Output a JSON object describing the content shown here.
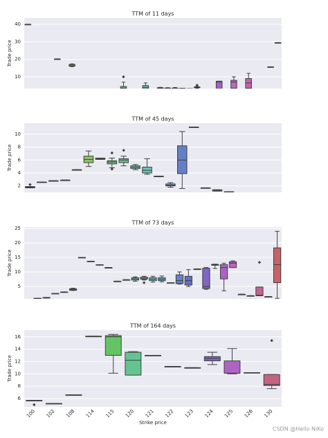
{
  "watermark": "CSDN @Hello NiKo",
  "chart_data": [
    {
      "type": "box",
      "title": "TTM of 11 days",
      "ylabel": "Trade price",
      "ylim": [
        3.3,
        43.6
      ],
      "yticks": [
        10,
        20,
        30,
        40
      ],
      "grid": true,
      "palette": {
        "hue_start": 10,
        "saturation": 45,
        "lightness": 58
      },
      "categories": [
        null,
        null,
        null,
        null,
        null,
        null,
        null,
        null,
        null,
        null,
        null,
        null,
        null,
        null,
        null,
        null,
        null,
        null,
        null,
        null,
        null,
        null,
        null,
        null,
        null,
        null,
        null,
        null,
        null,
        null,
        null,
        null,
        null,
        null,
        null
      ],
      "boxes": [
        [
          40,
          40,
          40,
          40,
          40
        ],
        null,
        null,
        null,
        [
          20.2,
          20.2,
          20.2,
          20.2,
          20.2
        ],
        null,
        [
          15.8,
          16.1,
          16.6,
          17.1,
          17.4
        ],
        null,
        null,
        null,
        null,
        null,
        null,
        [
          3,
          3.2,
          3.6,
          4.5,
          7
        ],
        null,
        null,
        [
          3,
          3.3,
          4,
          5,
          6.5
        ],
        null,
        [
          3,
          3.3,
          3.5,
          3.8,
          4
        ],
        [
          3.2,
          3.3,
          3.5,
          3.6,
          3.8
        ],
        [
          3.3,
          3.4,
          3.5,
          3.6,
          3.9
        ],
        [
          3.3,
          3.3,
          3.4,
          3.4,
          3.5
        ],
        [
          3.2,
          3.2,
          3.2,
          3.2,
          3.2
        ],
        [
          3.5,
          3.8,
          4,
          4.2,
          4.5
        ],
        null,
        null,
        [
          3,
          3.2,
          7,
          7.5,
          7.5
        ],
        null,
        [
          3,
          3.5,
          7,
          8,
          10
        ],
        null,
        [
          2.8,
          3.5,
          6.5,
          9,
          12
        ],
        null,
        null,
        [
          15.7,
          15.7,
          15.7,
          15.7,
          15.7
        ],
        [
          29.5,
          29.5,
          29.5,
          29.5,
          29.5
        ]
      ],
      "outliers": [
        [],
        [],
        [],
        [],
        [],
        [],
        [],
        [],
        [],
        [],
        [],
        [],
        [],
        [
          10
        ],
        [],
        [],
        [],
        [],
        [],
        [],
        [],
        [],
        [],
        [
          5.2
        ],
        [],
        [],
        [],
        [],
        [],
        [],
        [],
        [],
        [],
        [],
        []
      ]
    },
    {
      "type": "box",
      "title": "TTM of 45 days",
      "ylabel": "Trade price",
      "ylim": [
        1.0,
        11.7
      ],
      "yticks": [
        2,
        4,
        6,
        8,
        10
      ],
      "grid": true,
      "palette": {
        "hue_start": 10,
        "saturation": 45,
        "lightness": 58
      },
      "categories": [
        null,
        null,
        null,
        null,
        null,
        null,
        null,
        null,
        null,
        null,
        null,
        null,
        null,
        null,
        null,
        null,
        null,
        null,
        null,
        null,
        null,
        null
      ],
      "boxes": [
        [
          1.7,
          1.7,
          1.8,
          1.9,
          1.9
        ],
        [
          2.6,
          2.6,
          2.6,
          2.6,
          2.6
        ],
        [
          2.8,
          2.8,
          2.8,
          2.8,
          2.8
        ],
        [
          2.9,
          2.9,
          2.9,
          2.9,
          2.9
        ],
        [
          4.5,
          4.5,
          4.5,
          4.5,
          4.5
        ],
        [
          5,
          5.6,
          6.1,
          6.6,
          7.4
        ],
        [
          6.1,
          6.1,
          6.2,
          6.3,
          6.3
        ],
        [
          4.8,
          5.4,
          5.7,
          5.9,
          6.3
        ],
        [
          5.1,
          5.6,
          6,
          6.2,
          6.6
        ],
        [
          4.5,
          4.7,
          4.9,
          5.1,
          5.3
        ],
        [
          3.8,
          4,
          4.4,
          4.9,
          6.2
        ],
        [
          3.5,
          3.5,
          3.5,
          3.5,
          3.5
        ],
        [
          1.8,
          2,
          2.1,
          2.3,
          2.5
        ],
        [
          1.6,
          3.9,
          6,
          8.2,
          10.4
        ],
        [
          11.1,
          11.1,
          11.1,
          11.1,
          11.1
        ],
        [
          1.7,
          1.7,
          1.7,
          1.7,
          1.7
        ],
        [
          1.2,
          1.2,
          1.3,
          1.4,
          1.4
        ],
        [
          1.1,
          1.1,
          1.1,
          1.1,
          1.1
        ],
        null,
        null,
        null,
        null
      ],
      "outliers": [
        [
          2.2
        ],
        [],
        [],
        [],
        [],
        [],
        [],
        [
          7.1,
          4.6
        ],
        [
          7.5
        ],
        [],
        [],
        [],
        [],
        [],
        [],
        [],
        [],
        [],
        [],
        [],
        [],
        []
      ]
    },
    {
      "type": "box",
      "title": "TTM of 73 days",
      "ylabel": "Trade price",
      "ylim": [
        0.7,
        25.5
      ],
      "yticks": [
        5,
        10,
        15,
        20,
        25
      ],
      "grid": true,
      "palette": {
        "hue_start": 10,
        "saturation": 45,
        "lightness": 58
      },
      "categories": [
        null,
        null,
        null,
        null,
        null,
        null,
        null,
        null,
        null,
        null,
        null,
        null,
        null,
        null,
        null,
        null,
        null,
        null,
        null,
        null,
        null,
        null,
        null,
        null,
        null,
        null,
        null,
        null,
        null
      ],
      "boxes": [
        null,
        [
          0.9,
          0.9,
          0.9,
          0.9,
          0.9
        ],
        [
          1,
          1,
          1.1,
          1.2,
          1.2
        ],
        [
          2.6,
          2.6,
          2.6,
          2.6,
          2.6
        ],
        [
          3.1,
          3.1,
          3.1,
          3.1,
          3.1
        ],
        [
          3.6,
          3.7,
          3.9,
          4.2,
          4.4
        ],
        [
          15,
          15,
          15,
          15,
          15
        ],
        [
          13.7,
          13.7,
          13.7,
          13.7,
          13.7
        ],
        [
          12.5,
          12.5,
          12.5,
          12.5,
          12.5
        ],
        [
          11.5,
          11.5,
          11.5,
          11.5,
          11.5
        ],
        [
          6.8,
          6.8,
          6.8,
          6.8,
          6.8
        ],
        [
          7.3,
          7.3,
          7.3,
          7.3,
          7.3
        ],
        [
          6.8,
          7.2,
          7.6,
          8,
          8.3
        ],
        [
          7.2,
          7.5,
          7.8,
          8.2,
          8.5
        ],
        [
          6.5,
          7,
          7.5,
          8,
          8.5
        ],
        [
          6.6,
          7,
          7.5,
          8,
          8.6
        ],
        [
          6.3,
          6.3,
          6.3,
          6.3,
          6.3
        ],
        [
          5.8,
          6,
          7,
          9,
          10
        ],
        [
          5,
          5.5,
          7,
          8.5,
          10.8
        ],
        [
          11,
          11,
          11,
          11,
          11
        ],
        [
          4,
          4.3,
          5,
          11.3,
          11.5
        ],
        [
          11.2,
          12.3,
          12.5,
          12.6,
          12.7
        ],
        [
          3.5,
          7.6,
          11.5,
          12.5,
          13
        ],
        [
          11.5,
          11.5,
          13,
          13.5,
          13.8
        ],
        [
          2.3,
          2.3,
          2.3,
          2.3,
          2.3
        ],
        [
          1.8,
          1.8,
          1.8,
          1.8,
          1.8
        ],
        [
          1.8,
          1.8,
          2,
          4.8,
          4.8
        ],
        [
          1.5,
          1.5,
          1.5,
          1.5,
          1.5
        ],
        [
          0.9,
          6.3,
          12.5,
          18.3,
          24
        ]
      ],
      "outliers": [
        [],
        [],
        [],
        [],
        [],
        [],
        [],
        [],
        [],
        [],
        [],
        [],
        [],
        [
          6.3
        ],
        [],
        [],
        [],
        [],
        [],
        [],
        [],
        [],
        [],
        [],
        [],
        [],
        [
          13.3
        ],
        [],
        []
      ]
    },
    {
      "type": "box",
      "title": "TTM of 164 days",
      "ylabel": "Trade price",
      "xlabel": "Strike price",
      "ylim": [
        4.65,
        17.1
      ],
      "yticks": [
        6,
        8,
        10,
        12,
        14,
        16
      ],
      "grid": true,
      "palette": {
        "hue_start": 10,
        "saturation": 45,
        "lightness": 58
      },
      "categories": [
        "100",
        "102",
        "108",
        "114",
        "115",
        "120",
        "121",
        "122",
        "123",
        "124",
        "125",
        "126",
        "130"
      ],
      "boxes": [
        [
          5.7,
          5.7,
          5.7,
          5.7,
          5.7
        ],
        [
          5.2,
          5.2,
          5.2,
          5.2,
          5.2
        ],
        [
          6.6,
          6.6,
          6.6,
          6.6,
          6.6
        ],
        [
          16.1,
          16.1,
          16.1,
          16.1,
          16.1
        ],
        [
          10.1,
          13,
          16,
          16.2,
          16.4
        ],
        [
          9.8,
          9.8,
          12.2,
          13.5,
          13.6
        ],
        [
          13,
          13,
          13,
          13,
          13
        ],
        [
          11.2,
          11.2,
          11.2,
          11.2,
          11.2
        ],
        [
          11,
          11,
          11,
          11,
          11
        ],
        [
          11.5,
          12.1,
          12.5,
          12.8,
          13.5
        ],
        [
          10,
          10.1,
          10.1,
          12.1,
          14.1
        ],
        [
          10.2,
          10.2,
          10.2,
          10.2,
          10.2
        ],
        [
          7.6,
          8.1,
          8.3,
          9.9,
          9.9
        ]
      ],
      "outliers": [
        [
          5.0
        ],
        [],
        [],
        [],
        [],
        [],
        [],
        [],
        [],
        [],
        [],
        [],
        [
          15.4
        ]
      ]
    }
  ]
}
